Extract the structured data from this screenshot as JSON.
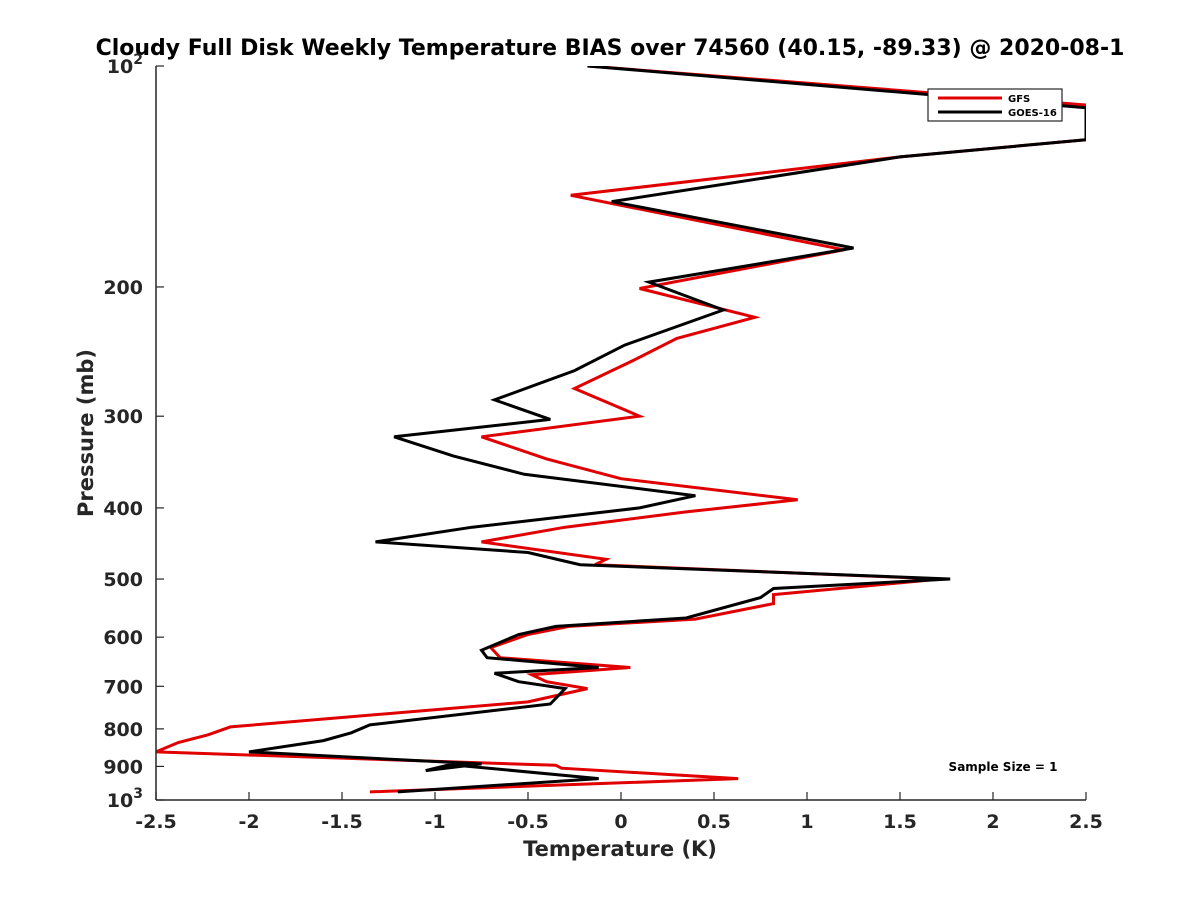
{
  "chart_data": {
    "type": "line",
    "title": "Cloudy Full Disk Weekly Temperature BIAS over 74560 (40.15, -89.33) @ 2020-08-1",
    "xlabel": "Temperature (K)",
    "ylabel": "Pressure (mb)",
    "xlim": [
      -2.5,
      2.5
    ],
    "ylim": [
      100,
      1000
    ],
    "yscale": "log",
    "yreversed": true,
    "x_ticks": [
      "-2.5",
      "-2",
      "-1.5",
      "-1",
      "-0.5",
      "0",
      "0.5",
      "1",
      "1.5",
      "2",
      "2.5"
    ],
    "y_ticks": [
      {
        "value": 100,
        "label": "10",
        "sup": "2"
      },
      {
        "value": 200,
        "label": "200"
      },
      {
        "value": 300,
        "label": "300"
      },
      {
        "value": 400,
        "label": "400"
      },
      {
        "value": 500,
        "label": "500"
      },
      {
        "value": 600,
        "label": "600"
      },
      {
        "value": 700,
        "label": "700"
      },
      {
        "value": 800,
        "label": "800"
      },
      {
        "value": 900,
        "label": "900"
      },
      {
        "value": 1000,
        "label": "10",
        "sup": "3"
      }
    ],
    "legend": {
      "position": "top-right"
    },
    "annotation": "Sample Size = 1",
    "series": [
      {
        "name": "GFS",
        "color": "#e00000",
        "points": [
          [
            -0.18,
            100
          ],
          [
            2.5,
            113
          ],
          [
            2.5,
            126
          ],
          [
            1.5,
            133
          ],
          [
            -0.27,
            150
          ],
          [
            1.2,
            178
          ],
          [
            0.1,
            201
          ],
          [
            0.72,
            220
          ],
          [
            0.3,
            235
          ],
          [
            0.05,
            253
          ],
          [
            -0.25,
            275
          ],
          [
            0.1,
            300
          ],
          [
            -0.75,
            320
          ],
          [
            -0.4,
            343
          ],
          [
            0.0,
            365
          ],
          [
            0.95,
            390
          ],
          [
            0.35,
            405
          ],
          [
            -0.3,
            425
          ],
          [
            -0.75,
            445
          ],
          [
            -0.08,
            470
          ],
          [
            -0.14,
            478
          ],
          [
            1.72,
            500
          ],
          [
            0.82,
            525
          ],
          [
            0.82,
            540
          ],
          [
            0.4,
            567
          ],
          [
            -0.28,
            580
          ],
          [
            -0.5,
            595
          ],
          [
            -0.7,
            620
          ],
          [
            -0.65,
            640
          ],
          [
            0.05,
            660
          ],
          [
            -0.48,
            675
          ],
          [
            -0.4,
            690
          ],
          [
            -0.18,
            705
          ],
          [
            -0.5,
            735
          ],
          [
            -2.1,
            795
          ],
          [
            -2.22,
            815
          ],
          [
            -2.38,
            835
          ],
          [
            -2.5,
            860
          ],
          [
            -0.35,
            897
          ],
          [
            -0.32,
            905
          ],
          [
            0.63,
            935
          ],
          [
            -1.35,
            975
          ]
        ]
      },
      {
        "name": "GOES-16",
        "color": "#000000",
        "points": [
          [
            -0.18,
            100
          ],
          [
            2.5,
            114
          ],
          [
            2.5,
            126
          ],
          [
            1.5,
            133
          ],
          [
            -0.05,
            153
          ],
          [
            1.25,
            177
          ],
          [
            0.15,
            197
          ],
          [
            0.55,
            215
          ],
          [
            0.02,
            240
          ],
          [
            -0.25,
            260
          ],
          [
            -0.68,
            285
          ],
          [
            -0.38,
            303
          ],
          [
            -1.22,
            320
          ],
          [
            -0.9,
            340
          ],
          [
            -0.52,
            360
          ],
          [
            0.4,
            385
          ],
          [
            0.1,
            400
          ],
          [
            -0.8,
            425
          ],
          [
            -1.32,
            445
          ],
          [
            -0.5,
            460
          ],
          [
            -0.22,
            478
          ],
          [
            1.77,
            500
          ],
          [
            0.82,
            515
          ],
          [
            0.75,
            530
          ],
          [
            0.35,
            565
          ],
          [
            -0.35,
            580
          ],
          [
            -0.55,
            595
          ],
          [
            -0.75,
            625
          ],
          [
            -0.72,
            640
          ],
          [
            -0.12,
            660
          ],
          [
            -0.68,
            672
          ],
          [
            -0.55,
            690
          ],
          [
            -0.3,
            705
          ],
          [
            -0.38,
            740
          ],
          [
            -1.35,
            790
          ],
          [
            -1.45,
            810
          ],
          [
            -1.6,
            830
          ],
          [
            -2.0,
            860
          ],
          [
            -0.75,
            893
          ],
          [
            -1.05,
            912
          ],
          [
            -0.92,
            895
          ],
          [
            -0.12,
            935
          ],
          [
            -1.2,
            975
          ]
        ]
      }
    ]
  }
}
